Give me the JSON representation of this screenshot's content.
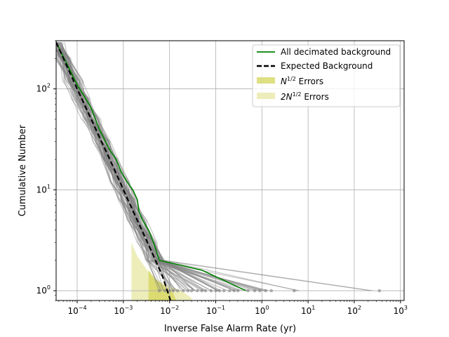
{
  "chart_data": {
    "type": "line",
    "xlabel": "Inverse False Alarm Rate (yr)",
    "ylabel": "Cumulative Number",
    "xscale": "log",
    "yscale": "log",
    "xlim": [
      3.5e-05,
      1200
    ],
    "ylim": [
      0.8,
      300
    ],
    "grid": true,
    "legend_position": "top-right",
    "x_tick_labels": [
      {
        "base": "10",
        "exp": "−4",
        "value": 0.0001
      },
      {
        "base": "10",
        "exp": "−3",
        "value": 0.001
      },
      {
        "base": "10",
        "exp": "−2",
        "value": 0.01
      },
      {
        "base": "10",
        "exp": "−1",
        "value": 0.1
      },
      {
        "base": "10",
        "exp": "0",
        "value": 1
      },
      {
        "base": "10",
        "exp": "1",
        "value": 10
      },
      {
        "base": "10",
        "exp": "2",
        "value": 100
      },
      {
        "base": "10",
        "exp": "3",
        "value": 1000
      }
    ],
    "y_tick_labels": [
      {
        "base": "10",
        "exp": "0",
        "value": 1
      },
      {
        "base": "10",
        "exp": "1",
        "value": 10
      },
      {
        "base": "10",
        "exp": "2",
        "value": 100
      }
    ],
    "legend": [
      {
        "label": "All decimated background",
        "style": "line",
        "color": "#008000"
      },
      {
        "label": "Expected Background",
        "style": "dashed",
        "color": "#000000"
      },
      {
        "label_base": "N",
        "label_sup": "1/2",
        "label_rest": " Errors",
        "style": "patch",
        "color": "#d4d45a"
      },
      {
        "label_base": "2N",
        "label_sup": "1/2",
        "label_rest": " Errors",
        "style": "patch",
        "color": "#ebebb3"
      }
    ],
    "colors": {
      "all_background": "#008000",
      "expected": "#000000",
      "decimated_realizations": "#808080",
      "n_half_band": "#d4d45a",
      "two_n_half_band": "#ebebb3",
      "grid": "#b0b0b0"
    },
    "series": [
      {
        "name": "All decimated background",
        "color": "#008000",
        "points": [
          [
            3.5e-05,
            290
          ],
          [
            0.0001,
            110
          ],
          [
            0.0002,
            65
          ],
          [
            0.0003,
            40
          ],
          [
            0.0005,
            25
          ],
          [
            0.0007,
            20
          ],
          [
            0.0009,
            15
          ],
          [
            0.0012,
            12
          ],
          [
            0.0016,
            10
          ],
          [
            0.002,
            8
          ],
          [
            0.0022,
            6
          ],
          [
            0.0026,
            5
          ],
          [
            0.0035,
            4
          ],
          [
            0.0045,
            3
          ],
          [
            0.006,
            2
          ],
          [
            0.05,
            1.6
          ],
          [
            0.45,
            1.0
          ]
        ]
      },
      {
        "name": "Expected Background",
        "color": "#000000",
        "dashed": true,
        "points": [
          [
            3.5e-05,
            290
          ],
          [
            0.0001,
            100
          ],
          [
            0.00028,
            36
          ],
          [
            0.0006,
            17
          ],
          [
            0.001,
            10
          ],
          [
            0.002,
            5
          ],
          [
            0.004,
            2.5
          ],
          [
            0.007,
            1.4
          ],
          [
            0.0105,
            0.8
          ]
        ]
      }
    ],
    "background_realizations": {
      "count": 60,
      "color": "#808080",
      "description_source": "grey decimated background curves",
      "endpoint_values_at_cumulative_1": [
        0.006,
        0.008,
        0.01,
        0.012,
        0.015,
        0.02,
        0.025,
        0.03,
        0.04,
        0.05,
        0.06,
        0.08,
        0.1,
        0.12,
        0.15,
        0.2,
        0.25,
        0.3,
        0.5,
        0.7,
        0.9,
        1.2,
        1.6,
        5,
        350
      ]
    }
  }
}
